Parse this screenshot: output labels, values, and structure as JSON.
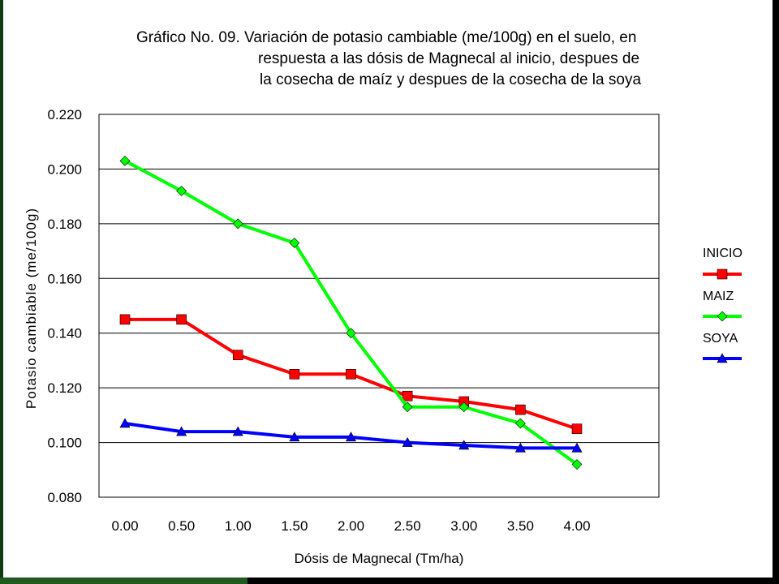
{
  "chart_data": {
    "type": "line",
    "title_lines": [
      "Gráfico No. 09. Variación de potasio cambiable (me/100g) en el suelo, en",
      "respuesta a las dósis de Magnecal al inicio, despues de",
      "la cosecha de maíz y despues de la cosecha de la soya"
    ],
    "xlabel": "Dósis de Magnecal (Tm/ha)",
    "ylabel": "Potasio cambiable (me/100g)",
    "categories": [
      "0.00",
      "0.50",
      "1.00",
      "1.50",
      "2.00",
      "2.50",
      "3.00",
      "3.50",
      "4.00"
    ],
    "ylim": [
      0.08,
      0.22
    ],
    "yticks": [
      "0.220",
      "0.200",
      "0.180",
      "0.160",
      "0.140",
      "0.120",
      "0.100",
      "0.080"
    ],
    "ytick_values": [
      0.22,
      0.2,
      0.18,
      0.16,
      0.14,
      0.12,
      0.1,
      0.08
    ],
    "grid": true,
    "legend_position": "right",
    "series": [
      {
        "name": "INICIO",
        "color": "#ff0000",
        "marker": "square",
        "values": [
          0.145,
          0.145,
          0.132,
          0.125,
          0.125,
          0.117,
          0.115,
          0.112,
          0.105
        ]
      },
      {
        "name": "MAIZ",
        "color": "#00ff00",
        "marker": "diamond",
        "values": [
          0.203,
          0.192,
          0.18,
          0.173,
          0.14,
          0.113,
          0.113,
          0.107,
          0.092
        ]
      },
      {
        "name": "SOYA",
        "color": "#0000ff",
        "marker": "triangle",
        "values": [
          0.107,
          0.104,
          0.104,
          0.102,
          0.102,
          0.1,
          0.099,
          0.098,
          0.098
        ]
      }
    ]
  }
}
